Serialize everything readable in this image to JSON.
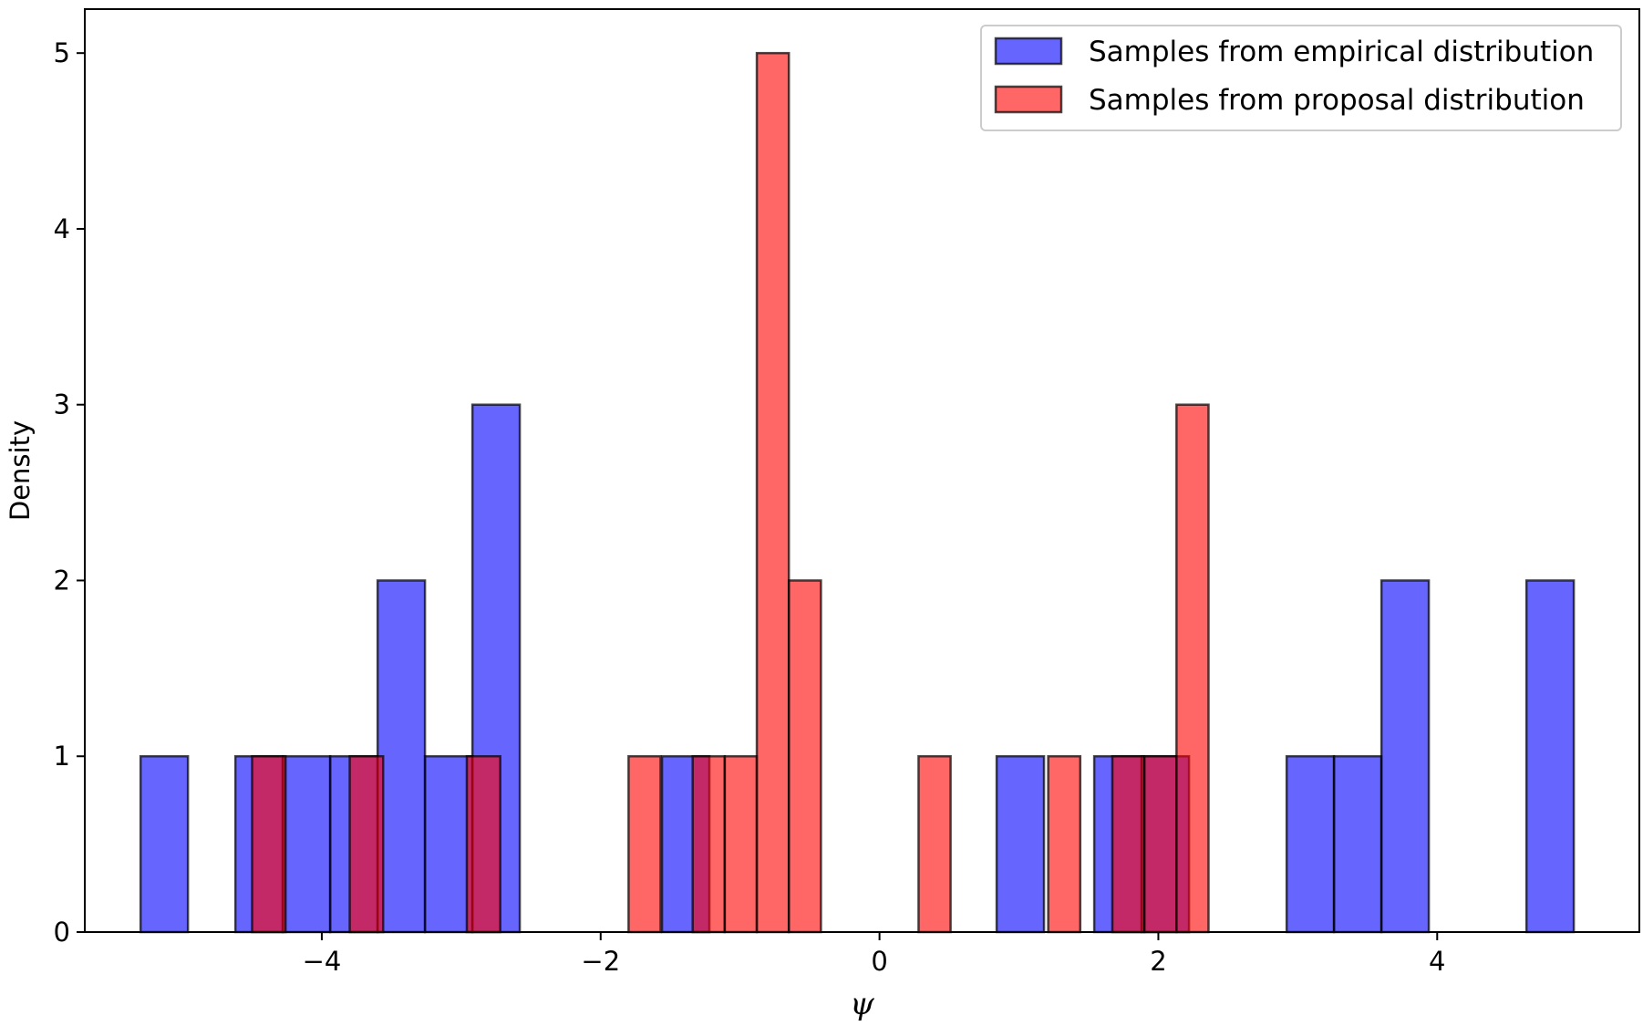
{
  "chart_data": {
    "type": "bar",
    "subtype": "overlapping-histogram",
    "title": "",
    "xlabel": "ψ",
    "ylabel": "Density",
    "xlim": [
      -5.7,
      5.45
    ],
    "ylim": [
      0,
      5.25
    ],
    "xticks": [
      -4,
      -2,
      0,
      2,
      4
    ],
    "xtick_labels": [
      "−4",
      "−2",
      "0",
      "2",
      "4"
    ],
    "yticks": [
      0,
      1,
      2,
      3,
      4,
      5
    ],
    "ytick_labels": [
      "0",
      "1",
      "2",
      "3",
      "4",
      "5"
    ],
    "grid": false,
    "legend_position": "top-right",
    "colors": {
      "empirical": "#0000ff",
      "proposal": "#ff0000",
      "edge": "#000000",
      "opacity": 0.6
    },
    "series": [
      {
        "name": "Samples from empirical distribution",
        "color": "#0000ff",
        "bins": [
          {
            "x0": -5.3,
            "x1": -4.96,
            "value": 1
          },
          {
            "x0": -4.62,
            "x1": -4.28,
            "value": 1
          },
          {
            "x0": -4.28,
            "x1": -3.94,
            "value": 1
          },
          {
            "x0": -3.94,
            "x1": -3.6,
            "value": 1
          },
          {
            "x0": -3.6,
            "x1": -3.26,
            "value": 2
          },
          {
            "x0": -3.26,
            "x1": -2.92,
            "value": 1
          },
          {
            "x0": -2.92,
            "x1": -2.58,
            "value": 3
          },
          {
            "x0": -1.56,
            "x1": -1.22,
            "value": 1
          },
          {
            "x0": 0.84,
            "x1": 1.18,
            "value": 1
          },
          {
            "x0": 1.54,
            "x1": 1.88,
            "value": 1
          },
          {
            "x0": 1.88,
            "x1": 2.22,
            "value": 1
          },
          {
            "x0": 2.92,
            "x1": 3.26,
            "value": 1
          },
          {
            "x0": 3.26,
            "x1": 3.6,
            "value": 1
          },
          {
            "x0": 3.6,
            "x1": 3.94,
            "value": 2
          },
          {
            "x0": 4.64,
            "x1": 4.98,
            "value": 2
          }
        ]
      },
      {
        "name": "Samples from proposal distribution",
        "color": "#ff0000",
        "bins": [
          {
            "x0": -4.5,
            "x1": -4.26,
            "value": 1
          },
          {
            "x0": -3.8,
            "x1": -3.56,
            "value": 1
          },
          {
            "x0": -2.96,
            "x1": -2.72,
            "value": 1
          },
          {
            "x0": -1.8,
            "x1": -1.57,
            "value": 1
          },
          {
            "x0": -1.34,
            "x1": -1.11,
            "value": 1
          },
          {
            "x0": -1.11,
            "x1": -0.88,
            "value": 1
          },
          {
            "x0": -0.88,
            "x1": -0.65,
            "value": 5
          },
          {
            "x0": -0.65,
            "x1": -0.42,
            "value": 2
          },
          {
            "x0": 0.28,
            "x1": 0.51,
            "value": 1
          },
          {
            "x0": 1.21,
            "x1": 1.44,
            "value": 1
          },
          {
            "x0": 1.67,
            "x1": 1.9,
            "value": 1
          },
          {
            "x0": 1.9,
            "x1": 2.13,
            "value": 1
          },
          {
            "x0": 2.13,
            "x1": 2.36,
            "value": 3
          }
        ]
      }
    ]
  }
}
